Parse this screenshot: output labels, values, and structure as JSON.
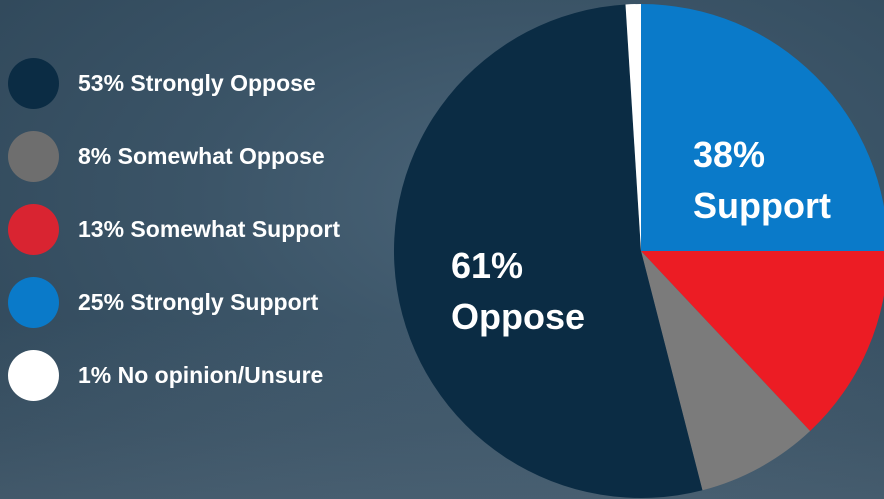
{
  "chart_data": {
    "type": "pie",
    "slices": [
      {
        "name": "Strongly Support",
        "value": 25,
        "color": "#0a7ac9"
      },
      {
        "name": "Somewhat Support",
        "value": 13,
        "color": "#ec1c24"
      },
      {
        "name": "Somewhat Oppose",
        "value": 8,
        "color": "#7b7b7b"
      },
      {
        "name": "Strongly Oppose",
        "value": 53,
        "color": "#0b2c44"
      },
      {
        "name": "No opinion/Unsure",
        "value": 1,
        "color": "#ffffff"
      }
    ],
    "legend": [
      {
        "label": "53% Strongly Oppose",
        "color": "#0b2c44"
      },
      {
        "label": "8% Somewhat Oppose",
        "color": "#6e6e6e"
      },
      {
        "label": "13% Somewhat Support",
        "color": "#d92431"
      },
      {
        "label": "25% Strongly Support",
        "color": "#0a7ac9"
      },
      {
        "label": "1% No opinion/Unsure",
        "color": "#ffffff"
      }
    ],
    "legend_position": "left",
    "annotations": {
      "support": {
        "line1": "38%",
        "line2": "Support"
      },
      "oppose": {
        "line1": "61%",
        "line2": "Oppose"
      }
    }
  }
}
